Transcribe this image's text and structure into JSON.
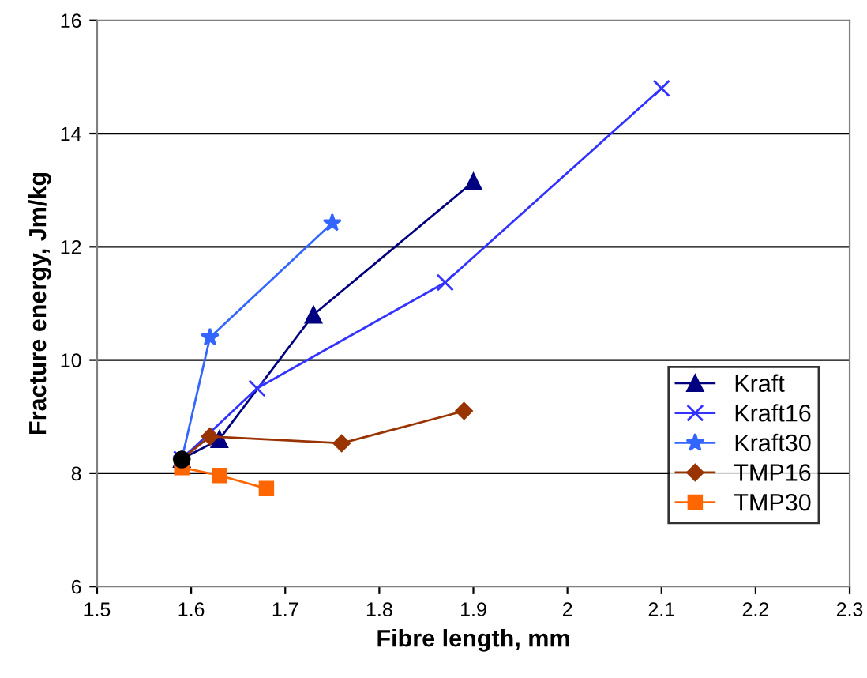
{
  "chart_data": {
    "type": "line",
    "xlabel": "Fibre length, mm",
    "ylabel": "Fracture energy, Jm/kg",
    "xlim": [
      1.5,
      2.3
    ],
    "ylim": [
      6,
      16
    ],
    "xticks": [
      1.5,
      1.6,
      1.7,
      1.8,
      1.9,
      2,
      2.1,
      2.2,
      2.3
    ],
    "yticks": [
      6,
      8,
      10,
      12,
      14,
      16
    ],
    "grid": "y",
    "legend": "right",
    "series": [
      {
        "name": "Kraft",
        "color": "#000080",
        "marker": "triangle",
        "x": [
          1.59,
          1.63,
          1.73,
          1.9
        ],
        "values": [
          8.25,
          8.6,
          10.8,
          13.15
        ]
      },
      {
        "name": "Kraft16",
        "color": "#3333ff",
        "marker": "cross",
        "x": [
          1.59,
          1.67,
          1.87,
          2.1
        ],
        "values": [
          8.25,
          9.5,
          11.37,
          14.8
        ]
      },
      {
        "name": "Kraft30",
        "color": "#3366ff",
        "marker": "star",
        "x": [
          1.59,
          1.62,
          1.75
        ],
        "values": [
          8.25,
          10.4,
          12.42
        ]
      },
      {
        "name": "TMP16",
        "color": "#993300",
        "marker": "diamond",
        "x": [
          1.59,
          1.62,
          1.76,
          1.89
        ],
        "values": [
          8.25,
          8.65,
          8.53,
          9.1
        ]
      },
      {
        "name": "TMP30",
        "color": "#ff6600",
        "marker": "square",
        "x": [
          1.59,
          1.63,
          1.68
        ],
        "values": [
          8.1,
          7.96,
          7.73
        ]
      },
      {
        "type": "scatter",
        "color": "#000000",
        "marker": "circle",
        "x": [
          1.59
        ],
        "values": [
          8.24
        ]
      }
    ]
  }
}
